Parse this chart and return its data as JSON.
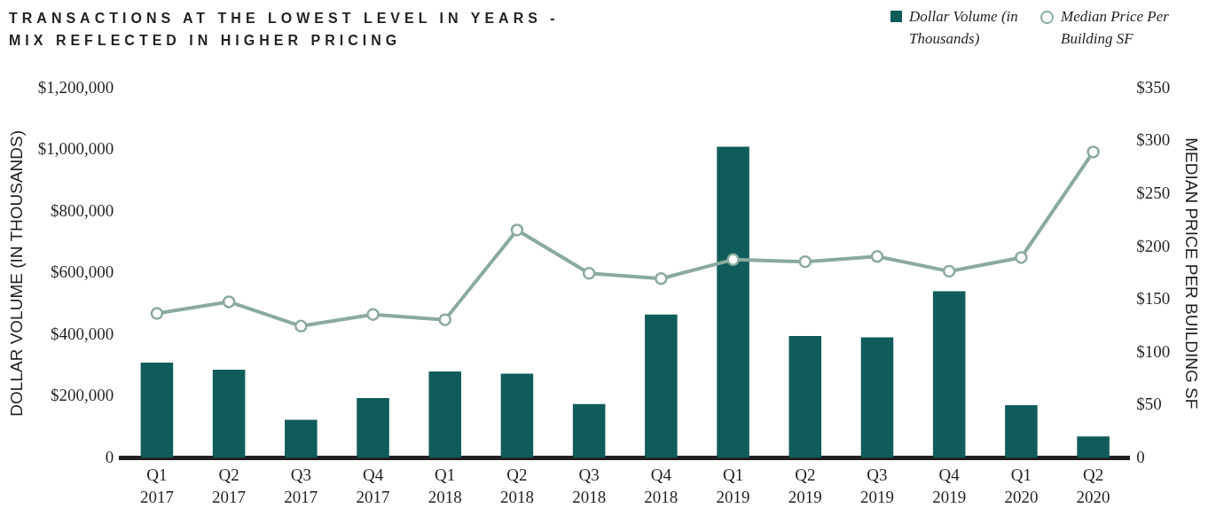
{
  "chart_data": {
    "type": "bar",
    "title": "TRANSACTIONS AT THE LOWEST LEVEL IN YEARS - MIX REFLECTED IN HIGHER PRICING",
    "ylabel": "DOLLAR VOLUME (IN THOUSANDS)",
    "y2label": "MEDIAN PRICE PER BUILDING SF",
    "categories": [
      "Q1 2017",
      "Q2 2017",
      "Q3 2017",
      "Q4 2017",
      "Q1 2018",
      "Q2 2018",
      "Q3 2018",
      "Q4 2018",
      "Q1 2019",
      "Q2 2019",
      "Q3 2019",
      "Q4 2019",
      "Q1 2020",
      "Q2 2020"
    ],
    "series": [
      {
        "name": "Dollar Volume (in Thousands)",
        "color": "#0f5c5a",
        "values": [
          310000,
          287000,
          124000,
          195000,
          281000,
          274000,
          175000,
          466000,
          1011000,
          396000,
          392000,
          542000,
          172000,
          70000
        ]
      },
      {
        "name": "Median Price Per Building SF",
        "type": "line",
        "axis": "y2",
        "color": "#8aaa9e",
        "marker": "circle",
        "values": [
          137,
          148,
          125,
          136,
          131,
          216,
          175,
          170,
          188,
          186,
          191,
          177,
          190,
          290
        ]
      }
    ],
    "ylim": [
      0,
      1200000
    ],
    "yticks": [
      0,
      {
        "value": 200000,
        "label": "$200,000"
      },
      {
        "value": 400000,
        "label": "$400,000"
      },
      {
        "value": 600000,
        "label": "$600,000"
      },
      {
        "value": 800000,
        "label": "$800,000"
      },
      {
        "value": 1000000,
        "label": "$1,000,000"
      },
      {
        "value": 1200000,
        "label": "$1,200,000"
      }
    ],
    "y2lim": [
      0,
      350
    ],
    "y2ticks": [
      0,
      {
        "value": 50,
        "label": "$50"
      },
      {
        "value": 100,
        "label": "$100"
      },
      {
        "value": 150,
        "label": "$150"
      },
      {
        "value": 200,
        "label": "$200"
      },
      {
        "value": 250,
        "label": "$250"
      },
      {
        "value": 300,
        "label": "$300"
      },
      {
        "value": 350,
        "label": "$350"
      }
    ],
    "grid": false,
    "legend": "top right"
  }
}
